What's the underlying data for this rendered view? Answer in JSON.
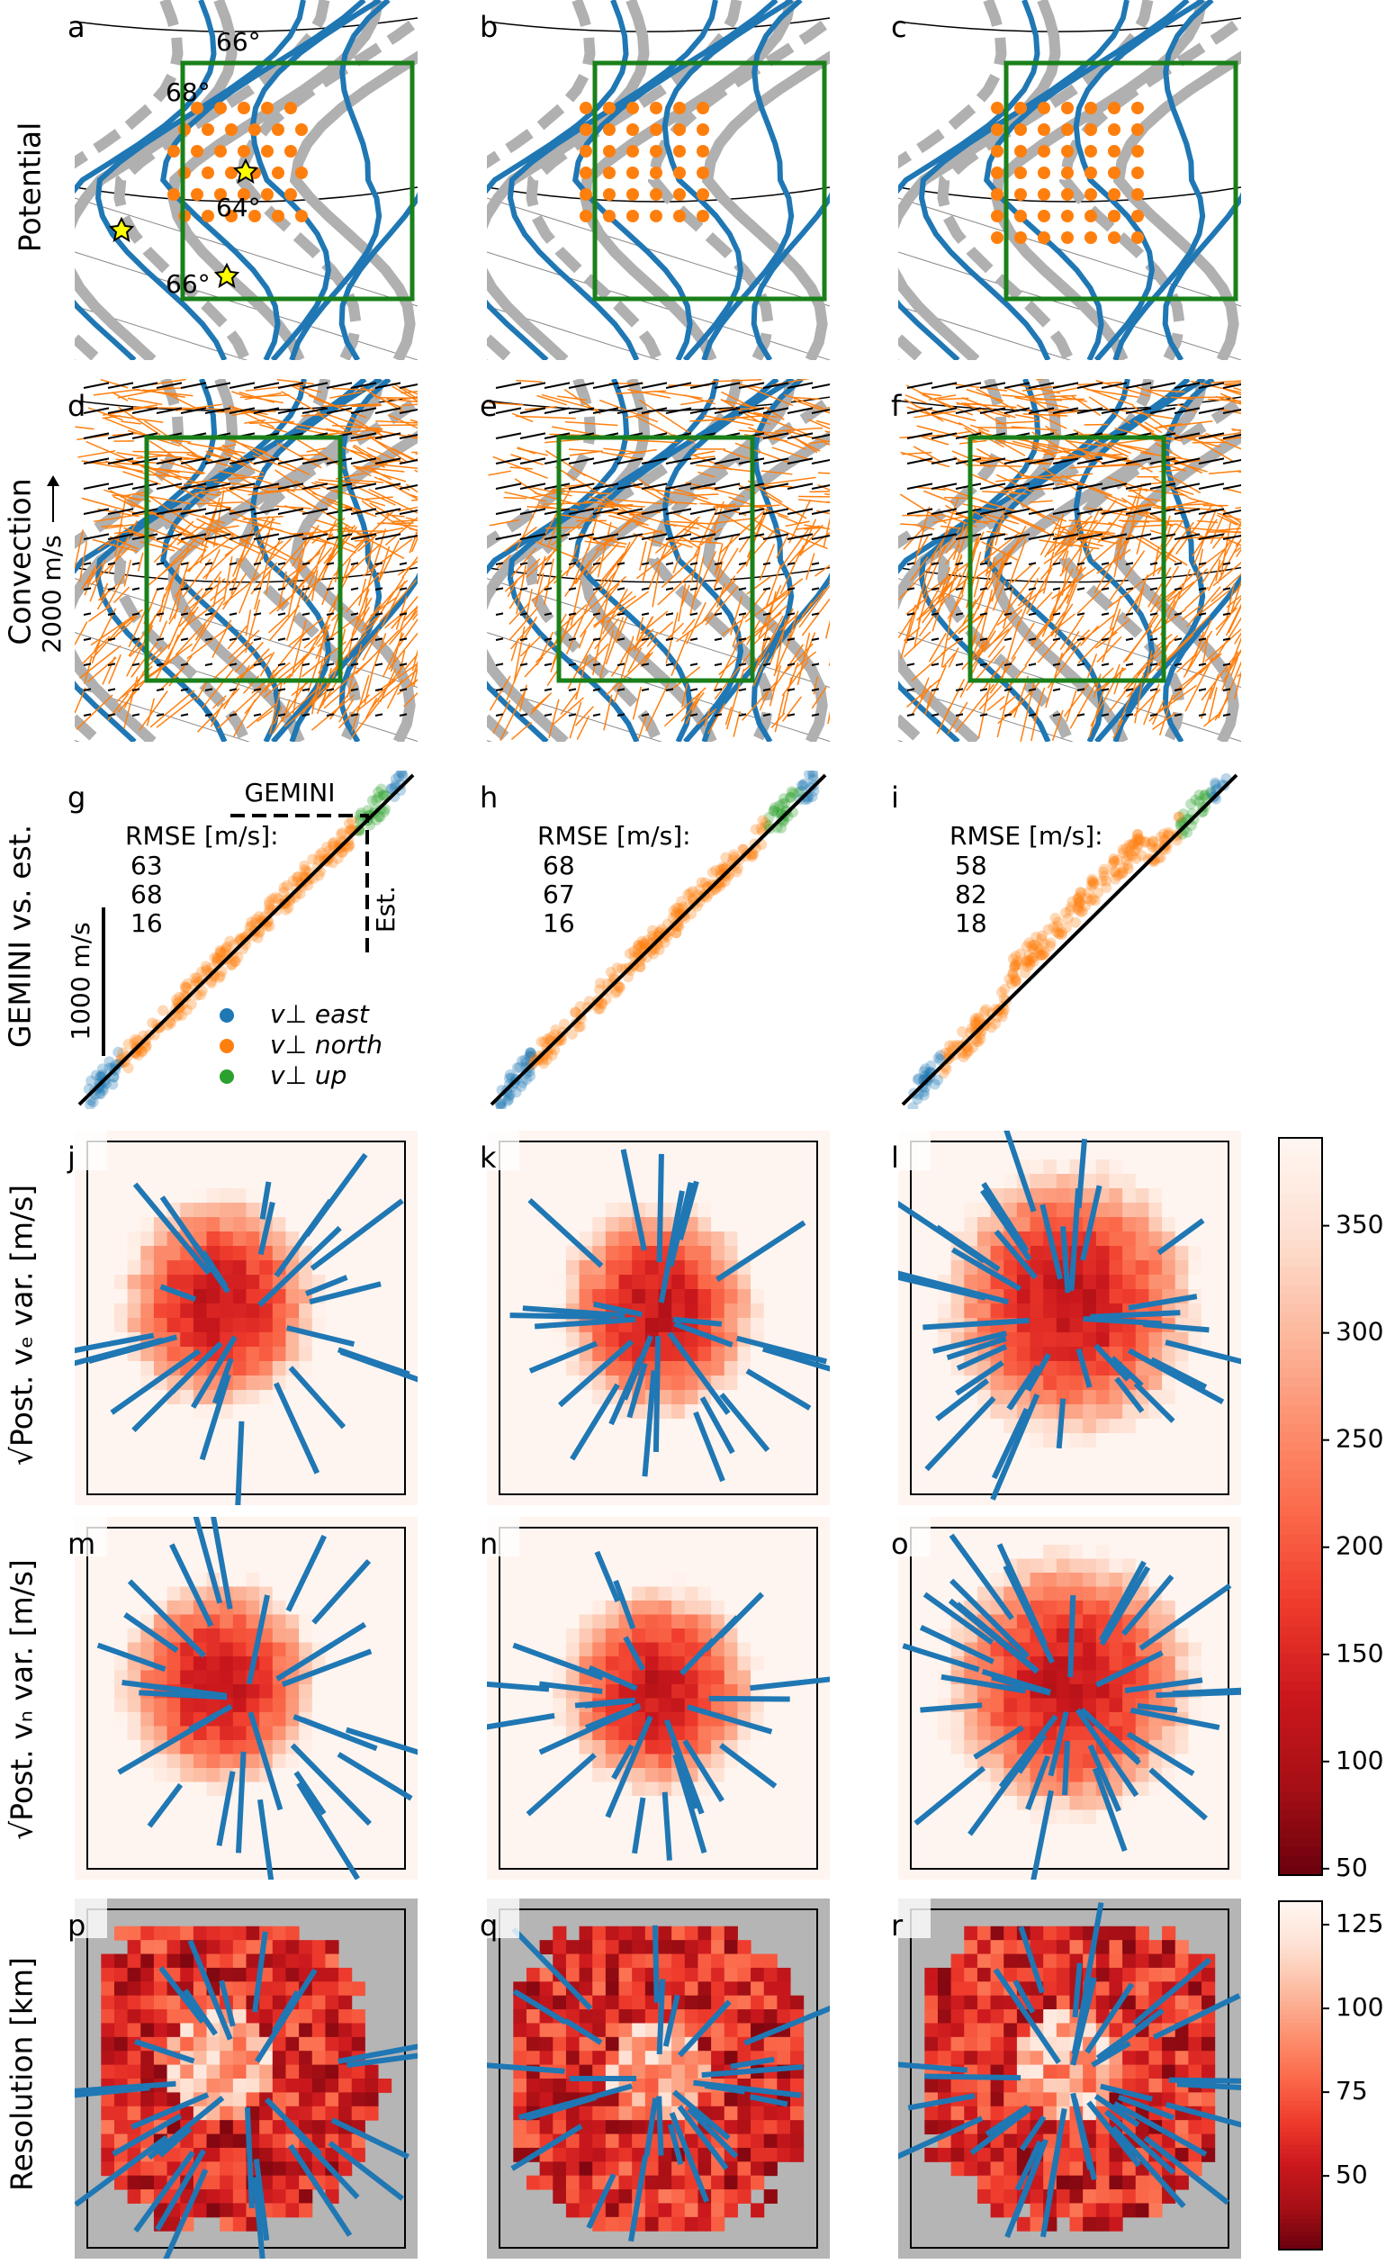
{
  "row_labels": [
    "Potential",
    "Convection",
    "GEMINI vs. est.",
    "√Post. vₑ var.  [m/s]",
    "√Post. vₙ var.  [m/s]",
    "Resolution [km]"
  ],
  "panel_letters": [
    "a",
    "b",
    "c",
    "d",
    "e",
    "f",
    "g",
    "h",
    "i",
    "j",
    "k",
    "l",
    "m",
    "n",
    "o",
    "p",
    "q",
    "r"
  ],
  "potential_labels": {
    "lat_a": "66°",
    "lat_b": "64°",
    "lat_c": "66°",
    "lat_d": "68°"
  },
  "convection_scale": "2000 m/s",
  "scatter": {
    "gemini_label": "GEMINI",
    "est_label": "Est.",
    "rmse_title": "RMSE [m/s]:",
    "scale_label": "1000 m/s",
    "series": [
      {
        "name": "v⊥ east",
        "color": "#1f77b4"
      },
      {
        "name": "v⊥ north",
        "color": "#ff7f0e"
      },
      {
        "name": "v⊥ up",
        "color": "#2ca02c"
      }
    ],
    "rmse": [
      [
        63,
        68,
        16
      ],
      [
        68,
        67,
        16
      ],
      [
        58,
        82,
        18
      ]
    ]
  },
  "colorbars": [
    {
      "lim": [
        47,
        391
      ],
      "ticks": [
        50,
        100,
        150,
        200,
        250,
        300,
        350
      ]
    },
    {
      "lim": [
        28,
        132
      ],
      "ticks": [
        50,
        75,
        100,
        125
      ]
    }
  ]
}
